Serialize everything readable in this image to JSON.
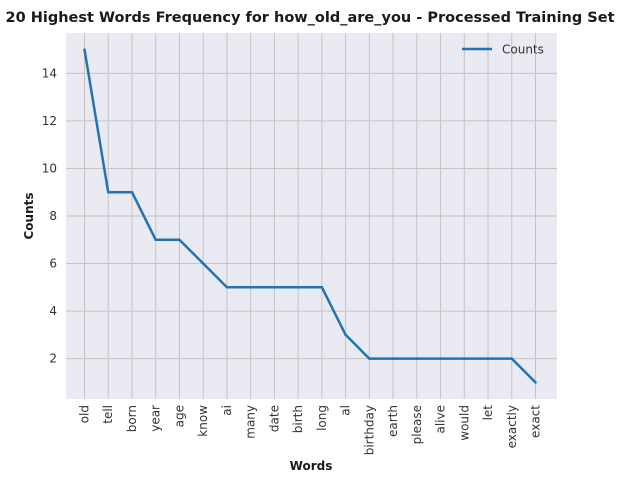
{
  "chart_data": {
    "type": "line",
    "title": "20 Highest Words Frequency for how_old_are_you - Processed Training Set",
    "xlabel": "Words",
    "ylabel": "Counts",
    "categories": [
      "old",
      "tell",
      "born",
      "year",
      "age",
      "know",
      "ai",
      "many",
      "date",
      "birth",
      "long",
      "al",
      "birthday",
      "earth",
      "please",
      "alive",
      "would",
      "let",
      "exactly",
      "exact"
    ],
    "series": [
      {
        "name": "Counts",
        "values": [
          15,
          9,
          9,
          7,
          7,
          6,
          5,
          5,
          5,
          5,
          5,
          3,
          2,
          2,
          2,
          2,
          2,
          2,
          2,
          1
        ]
      }
    ],
    "ylim": [
      0.3,
      15.7
    ],
    "yticks": [
      2,
      4,
      6,
      8,
      10,
      12,
      14
    ],
    "grid": true,
    "legend": "top-right",
    "colors": {
      "line": "#2572b2",
      "plot_bg": "#eaeaf2",
      "grid": "#c4c4c4"
    }
  }
}
